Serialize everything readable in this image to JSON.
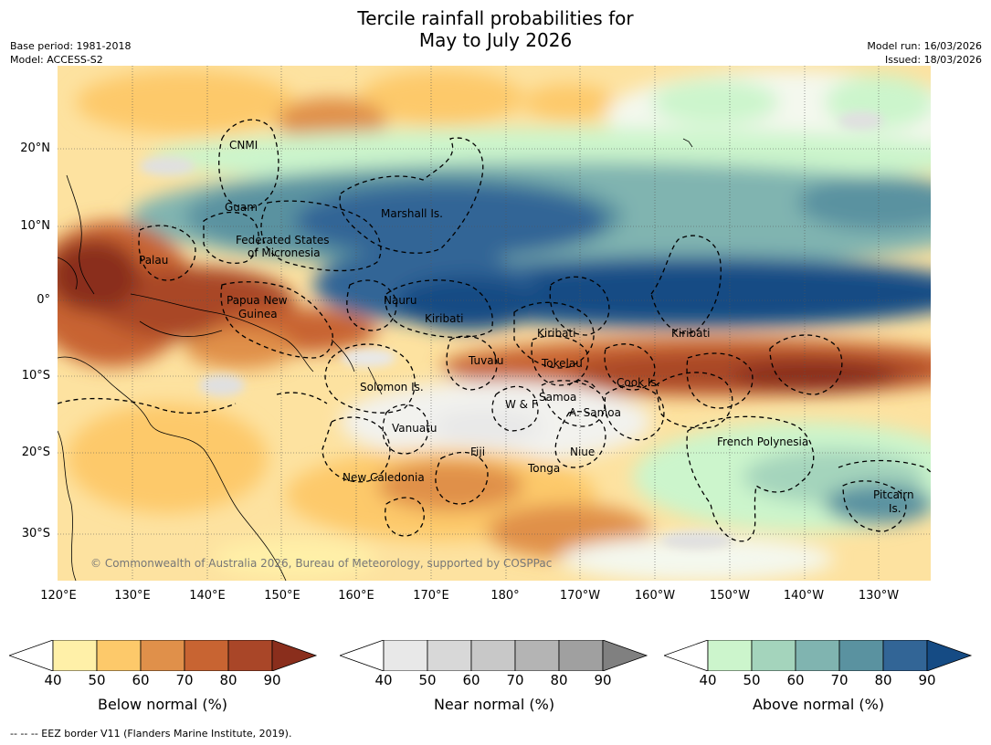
{
  "title_line1": "Tercile rainfall probabilities for",
  "title_line2": "May to July 2026",
  "meta": {
    "base_period": "Base period: 1981-2018",
    "model": "Model: ACCESS-S2",
    "model_run": "Model run: 16/03/2026",
    "issued": "Issued: 18/03/2026"
  },
  "lat_ticks": [
    "20°N",
    "10°N",
    "0°",
    "10°S",
    "20°S",
    "30°S"
  ],
  "lon_ticks": [
    "120°E",
    "130°E",
    "140°E",
    "150°E",
    "160°E",
    "170°E",
    "180°",
    "170°W",
    "160°W",
    "150°W",
    "140°W",
    "130°W"
  ],
  "regions": {
    "cnmi": "CNMI",
    "guam": "Guam",
    "marshall": "Marshall Is.",
    "fsm_1": "Federated States",
    "fsm_2": "of Micronesia",
    "palau": "Palau",
    "png_1": "Papua New",
    "png_2": "Guinea",
    "nauru": "Nauru",
    "kiribati_west": "Kiribati",
    "kiribati_central": "Kiribati",
    "kiribati_east": "Kiribati",
    "tuvalu": "Tuvalu",
    "tokelau": "Tokelau",
    "cook": "Cook Is.",
    "solomon": "Solomon Is.",
    "wf": "W & F",
    "samoa": "Samoa",
    "asamoa": "A. Samoa",
    "vanuatu": "Vanuatu",
    "fiji": "Fiji",
    "niue": "Niue",
    "french_polynesia": "French Polynesia",
    "tonga": "Tonga",
    "new_caledonia": "New Caledonia",
    "pitcairn_1": "Pitcairn",
    "pitcairn_2": "Is."
  },
  "copyright": "© Commonwealth of Australia 2026, Bureau of Meteorology, supported by COSPPac",
  "colorbars": [
    {
      "label": "Below normal (%)",
      "ticks": [
        "40",
        "50",
        "60",
        "70",
        "80",
        "90"
      ],
      "colors": [
        "#fff0a8",
        "#fdc96a",
        "#e0904a",
        "#c86432",
        "#a94628"
      ],
      "extend_color": "#8a2e1c"
    },
    {
      "label": "Near normal (%)",
      "ticks": [
        "40",
        "50",
        "60",
        "70",
        "80",
        "90"
      ],
      "colors": [
        "#e8e8e8",
        "#d8d8d8",
        "#c8c8c8",
        "#b4b4b4",
        "#a0a0a0"
      ],
      "extend_color": "#808080"
    },
    {
      "label": "Above normal (%)",
      "ticks": [
        "40",
        "50",
        "60",
        "70",
        "80",
        "90"
      ],
      "colors": [
        "#ccf5cc",
        "#a4d4bc",
        "#80b4b0",
        "#5a92a0",
        "#326596"
      ],
      "extend_color": "#154b84"
    }
  ],
  "eez_note": "--  --  -- EEZ border V11 (Flanders Marine Institute, 2019).",
  "palette": {
    "land_line": "#000000",
    "grid": "#555555"
  }
}
